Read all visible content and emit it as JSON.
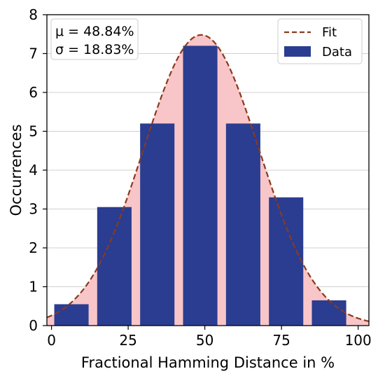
{
  "chart_data": {
    "type": "bar",
    "x": [
      6.5,
      20.5,
      34.5,
      48.5,
      62.5,
      76.5,
      90.5
    ],
    "values": [
      0.55,
      3.05,
      5.2,
      7.2,
      5.2,
      3.3,
      0.65
    ],
    "bar_width": 11.2,
    "xlabel": "Fractional Hamming Distance in %",
    "ylabel": "Occurrences",
    "xlim": [
      -1.5,
      103.5
    ],
    "ylim": [
      0,
      8
    ],
    "xticks": [
      0,
      25,
      50,
      75,
      100
    ],
    "yticks": [
      0,
      1,
      2,
      3,
      4,
      5,
      6,
      7,
      8
    ],
    "grid": "horizontal",
    "fit": {
      "name": "Fit",
      "peak": 7.48,
      "mu": 48.84,
      "sigma": 18.83
    },
    "annotation": [
      "μ = 48.84%",
      "σ = 18.83%"
    ],
    "legend": {
      "placement": "top-right",
      "entries": [
        {
          "label": "Fit",
          "style": "dashed-line"
        },
        {
          "label": "Data",
          "style": "box"
        }
      ]
    },
    "colors": {
      "bar": "#2a3d91",
      "fit_line": "#8b3a1e",
      "fit_fill": "#f8c6c8",
      "grid": "#d0d0d0"
    }
  }
}
